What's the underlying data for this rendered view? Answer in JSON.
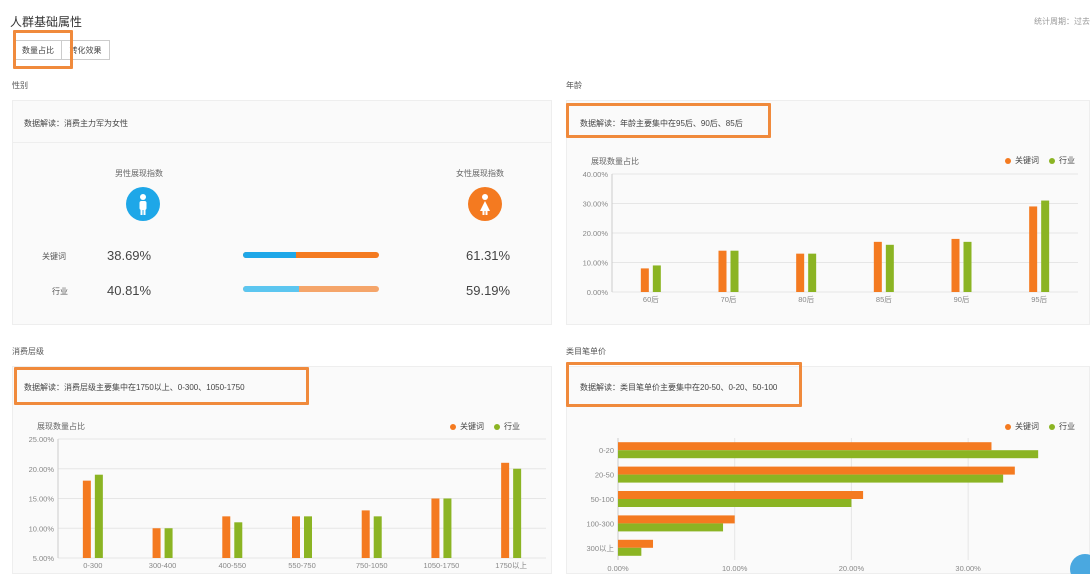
{
  "page": {
    "title": "人群基础属性",
    "stat_period": "统计周期：过去",
    "tabs": [
      {
        "label": "数量占比"
      },
      {
        "label": "转化效果"
      }
    ]
  },
  "colors": {
    "keyword": "#f47a20",
    "industry": "#8bb423",
    "male": "#1ea7e8",
    "female": "#f47a20",
    "highlight": "#f08a3c"
  },
  "legend": {
    "keyword": "关键词",
    "industry": "行业"
  },
  "gender": {
    "title": "性别",
    "interp": "数据解读：消费主力军为女性",
    "male_label": "男性展现指数",
    "female_label": "女性展现指数",
    "male_icon": "male-person-icon",
    "female_icon": "female-person-icon",
    "rows": [
      {
        "label": "关键词",
        "male": "38.69%",
        "female": "61.31%",
        "male_share": 0.3869
      },
      {
        "label": "行业",
        "male": "40.81%",
        "female": "59.19%",
        "male_share": 0.4081
      }
    ]
  },
  "age": {
    "title": "年龄",
    "interp": "数据解读：年龄主要集中在95后、90后、85后",
    "ylabel": "展现数量占比"
  },
  "consumption": {
    "title": "消费层级",
    "interp": "数据解读：消费层级主要集中在1750以上、0-300、1050-1750",
    "ylabel": "展现数量占比"
  },
  "unit_price": {
    "title": "类目笔单价",
    "interp": "数据解读：类目笔单价主要集中在20-50、0-20、50-100"
  },
  "chart_data": [
    {
      "type": "bar",
      "categories": [
        "60后",
        "70后",
        "80后",
        "85后",
        "90后",
        "95后"
      ],
      "series": [
        {
          "name": "关键词",
          "values": [
            8,
            14,
            13,
            17,
            18,
            29
          ]
        },
        {
          "name": "行业",
          "values": [
            9,
            14,
            13,
            16,
            17,
            31
          ]
        }
      ],
      "yticks": [
        "0.00%",
        "10.00%",
        "20.00%",
        "30.00%",
        "40.00%"
      ],
      "ylim": [
        0,
        40
      ]
    },
    {
      "type": "bar",
      "categories": [
        "0-300",
        "300-400",
        "400-550",
        "550-750",
        "750-1050",
        "1050-1750",
        "1750以上"
      ],
      "series": [
        {
          "name": "关键词",
          "values": [
            18,
            10,
            12,
            12,
            13,
            15,
            21
          ]
        },
        {
          "name": "行业",
          "values": [
            19,
            10,
            11,
            12,
            12,
            15,
            20
          ]
        }
      ],
      "yticks": [
        "5.00%",
        "10.00%",
        "15.00%",
        "20.00%",
        "25.00%"
      ],
      "ylim": [
        5,
        25
      ]
    },
    {
      "type": "bar",
      "orientation": "horizontal",
      "categories": [
        "0-20",
        "20-50",
        "50-100",
        "100-300",
        "300以上"
      ],
      "series": [
        {
          "name": "关键词",
          "values": [
            32,
            34,
            21,
            10,
            3
          ]
        },
        {
          "name": "行业",
          "values": [
            36,
            33,
            20,
            9,
            2
          ]
        }
      ],
      "xticks": [
        "0.00%",
        "10.00%",
        "20.00%",
        "30.00%"
      ],
      "xlim": [
        0,
        36.5
      ]
    }
  ]
}
